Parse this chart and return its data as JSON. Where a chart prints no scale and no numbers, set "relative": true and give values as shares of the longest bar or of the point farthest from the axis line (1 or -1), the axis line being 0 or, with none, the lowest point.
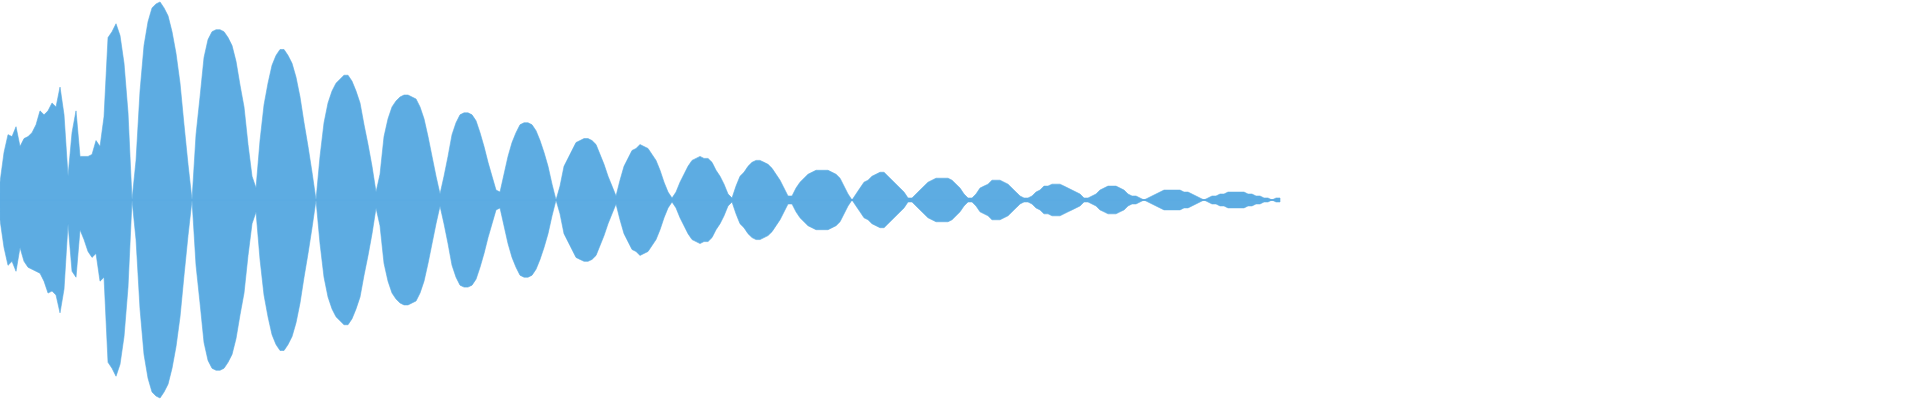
{
  "chart_data": {
    "type": "area",
    "relative": true,
    "categories": [
      null,
      null,
      null,
      null,
      null,
      null,
      null,
      null,
      null,
      null,
      null,
      null,
      null,
      null,
      null,
      null,
      null,
      null,
      null,
      null,
      null,
      null,
      null,
      null,
      null,
      null,
      null,
      null,
      null,
      null,
      null,
      null,
      null,
      null,
      null,
      null,
      null,
      null,
      null,
      null,
      null,
      null,
      null,
      null,
      null,
      null,
      null,
      null,
      null,
      null,
      null,
      null,
      null,
      null,
      null,
      null,
      null,
      null,
      null,
      null,
      null,
      null,
      null,
      null,
      null,
      null,
      null,
      null,
      null,
      null,
      null,
      null,
      null,
      null,
      null,
      null,
      null,
      null,
      null,
      null,
      null,
      null,
      null,
      null,
      null,
      null,
      null,
      null,
      null,
      null,
      null,
      null,
      null,
      null,
      null,
      null,
      null,
      null,
      null,
      null,
      null,
      null,
      null,
      null,
      null,
      null,
      null,
      null,
      null,
      null,
      null,
      null,
      null,
      null,
      null,
      null,
      null,
      null,
      null,
      null,
      null,
      null,
      null,
      null,
      null,
      null,
      null,
      null,
      null,
      null,
      null,
      null,
      null,
      null,
      null,
      null,
      null,
      null,
      null,
      null,
      null,
      null,
      null,
      null,
      null,
      null,
      null,
      null,
      null,
      null,
      null,
      null,
      null,
      null,
      null,
      null,
      null,
      null,
      null,
      null,
      null,
      null,
      null,
      null,
      null,
      null,
      null,
      null,
      null,
      null,
      null,
      null,
      null,
      null,
      null,
      null,
      null,
      null,
      null,
      null,
      null,
      null,
      null,
      null,
      null,
      null,
      null,
      null,
      null,
      null,
      null,
      null,
      null,
      null,
      null,
      null,
      null,
      null,
      null,
      null,
      null,
      null,
      null,
      null,
      null,
      null,
      null,
      null,
      null,
      null,
      null,
      null,
      null,
      null,
      null,
      null,
      null,
      null,
      null,
      null,
      null,
      null,
      null,
      null,
      null,
      null,
      null,
      null,
      null,
      null,
      null,
      null,
      null,
      null,
      null,
      null,
      null,
      null,
      null,
      null,
      null,
      null,
      null,
      null,
      null,
      null,
      null,
      null,
      null,
      null,
      null,
      null,
      null,
      null,
      null,
      null,
      null,
      null,
      null,
      null,
      null,
      null,
      null,
      null,
      null,
      null,
      null,
      null,
      null,
      null,
      null,
      null,
      null,
      null,
      null,
      null,
      null,
      null,
      null,
      null,
      null,
      null,
      null,
      null,
      null,
      null,
      null,
      null,
      null,
      null,
      null,
      null,
      null,
      null,
      null,
      null,
      null,
      null,
      null,
      null,
      null,
      null,
      null,
      null,
      null,
      null,
      null,
      null,
      null,
      null,
      null,
      null,
      null,
      null,
      null,
      null,
      null,
      null,
      null,
      null,
      null
    ],
    "ref_lines": [
      {
        "axis": "y",
        "value": 0,
        "color": "#5dace2"
      }
    ],
    "series": [
      {
        "color": "#5dace2",
        "values": [
          0.09,
          0.24,
          0.33,
          0.32,
          0.37,
          0.27,
          0.31,
          0.32,
          0.34,
          0.38,
          0.45,
          0.43,
          0.45,
          0.49,
          0.47,
          0.57,
          0.43,
          0.12,
          0.34,
          0.45,
          0.22,
          0.22,
          0.22,
          0.23,
          0.3,
          0.27,
          0.42,
          0.82,
          0.85,
          0.89,
          0.83,
          0.69,
          0.44,
          0,
          0.2,
          0.55,
          0.78,
          0.9,
          0.97,
          0.99,
          1.0,
          0.97,
          0.93,
          0.85,
          0.74,
          0.59,
          0.38,
          0.18,
          0,
          0.33,
          0.52,
          0.72,
          0.81,
          0.85,
          0.86,
          0.86,
          0.85,
          0.82,
          0.78,
          0.7,
          0.58,
          0.47,
          0.28,
          0.12,
          0.06,
          0.3,
          0.48,
          0.59,
          0.68,
          0.73,
          0.76,
          0.76,
          0.73,
          0.69,
          0.62,
          0.52,
          0.39,
          0.27,
          0.14,
          0,
          0.22,
          0.39,
          0.49,
          0.55,
          0.59,
          0.61,
          0.63,
          0.63,
          0.6,
          0.55,
          0.49,
          0.38,
          0.28,
          0.17,
          0.04,
          0.13,
          0.32,
          0.41,
          0.47,
          0.5,
          0.52,
          0.53,
          0.53,
          0.52,
          0.51,
          0.47,
          0.41,
          0.32,
          0.22,
          0.12,
          0.03,
          0.12,
          0.22,
          0.33,
          0.39,
          0.43,
          0.44,
          0.44,
          0.43,
          0.4,
          0.34,
          0.27,
          0.19,
          0.12,
          0.05,
          0.04,
          0.13,
          0.22,
          0.29,
          0.34,
          0.38,
          0.39,
          0.39,
          0.38,
          0.35,
          0.3,
          0.24,
          0.17,
          0.08,
          0,
          0.07,
          0.17,
          0.21,
          0.25,
          0.29,
          0.3,
          0.31,
          0.31,
          0.3,
          0.28,
          0.23,
          0.18,
          0.12,
          0.07,
          0.02,
          0.1,
          0.17,
          0.21,
          0.25,
          0.26,
          0.28,
          0.27,
          0.26,
          0.23,
          0.2,
          0.15,
          0.09,
          0.04,
          0.01,
          0.04,
          0.09,
          0.13,
          0.17,
          0.2,
          0.21,
          0.22,
          0.21,
          0.21,
          0.19,
          0.15,
          0.12,
          0.08,
          0.03,
          0.01,
          0.07,
          0.12,
          0.14,
          0.17,
          0.19,
          0.2,
          0.2,
          0.19,
          0.18,
          0.16,
          0.13,
          0.1,
          0.06,
          0.02,
          0.02,
          0.06,
          0.09,
          0.11,
          0.13,
          0.14,
          0.15,
          0.15,
          0.15,
          0.15,
          0.14,
          0.13,
          0.11,
          0.07,
          0.03,
          0,
          0.03,
          0.06,
          0.09,
          0.1,
          0.12,
          0.13,
          0.14,
          0.14,
          0.12,
          0.1,
          0.08,
          0.06,
          0.04,
          0.01,
          0.01,
          0.03,
          0.05,
          0.07,
          0.09,
          0.1,
          0.11,
          0.11,
          0.11,
          0.11,
          0.1,
          0.08,
          0.06,
          0.03,
          0.01,
          0.01,
          0.03,
          0.06,
          0.07,
          0.08,
          0.1,
          0.1,
          0.1,
          0.09,
          0.08,
          0.06,
          0.04,
          0.02,
          0.01,
          0.01,
          0.02,
          0.04,
          0.05,
          0.07,
          0.07,
          0.08,
          0.08,
          0.08,
          0.07,
          0.06,
          0.05,
          0.04,
          0.03,
          0.01,
          0.01,
          0.02,
          0.03,
          0.05,
          0.06,
          0.07,
          0.07,
          0.07,
          0.06,
          0.05,
          0.03,
          0.02,
          0.02,
          0.01,
          0,
          0.01,
          0.02,
          0.03,
          0.04,
          0.05,
          0.05,
          0.05,
          0.05,
          0.05,
          0.04,
          0.04,
          0.03,
          0.02,
          0.01,
          0,
          0.01,
          0.02,
          0.02,
          0.03,
          0.03,
          0.04,
          0.04,
          0.04,
          0.04,
          0.04,
          0.03,
          0.03,
          0.02,
          0.02,
          0.01,
          0.01,
          0,
          0.01,
          0.01
        ]
      },
      {
        "color": "#5dace2",
        "values": [
          -0.1,
          -0.24,
          -0.33,
          -0.31,
          -0.36,
          -0.24,
          -0.31,
          -0.34,
          -0.35,
          -0.36,
          -0.37,
          -0.41,
          -0.47,
          -0.46,
          -0.48,
          -0.57,
          -0.45,
          -0.12,
          -0.36,
          -0.39,
          -0.15,
          -0.2,
          -0.26,
          -0.29,
          -0.27,
          -0.41,
          -0.39,
          -0.82,
          -0.85,
          -0.89,
          -0.83,
          -0.69,
          -0.44,
          0,
          -0.2,
          -0.55,
          -0.78,
          -0.9,
          -0.97,
          -0.99,
          -1.0,
          -0.97,
          -0.93,
          -0.85,
          -0.74,
          -0.59,
          -0.38,
          -0.18,
          0,
          -0.33,
          -0.52,
          -0.72,
          -0.81,
          -0.85,
          -0.86,
          -0.86,
          -0.85,
          -0.82,
          -0.78,
          -0.7,
          -0.58,
          -0.47,
          -0.28,
          -0.12,
          -0.06,
          -0.3,
          -0.48,
          -0.59,
          -0.68,
          -0.73,
          -0.76,
          -0.76,
          -0.73,
          -0.69,
          -0.62,
          -0.52,
          -0.39,
          -0.27,
          -0.14,
          0,
          -0.22,
          -0.39,
          -0.49,
          -0.55,
          -0.59,
          -0.61,
          -0.63,
          -0.63,
          -0.6,
          -0.55,
          -0.49,
          -0.38,
          -0.28,
          -0.17,
          -0.04,
          -0.13,
          -0.32,
          -0.41,
          -0.47,
          -0.5,
          -0.52,
          -0.53,
          -0.53,
          -0.52,
          -0.51,
          -0.47,
          -0.41,
          -0.32,
          -0.22,
          -0.12,
          -0.03,
          -0.12,
          -0.22,
          -0.33,
          -0.39,
          -0.43,
          -0.44,
          -0.44,
          -0.43,
          -0.4,
          -0.34,
          -0.27,
          -0.19,
          -0.12,
          -0.05,
          -0.04,
          -0.13,
          -0.22,
          -0.29,
          -0.34,
          -0.38,
          -0.39,
          -0.39,
          -0.38,
          -0.35,
          -0.3,
          -0.24,
          -0.17,
          -0.08,
          0,
          -0.07,
          -0.17,
          -0.21,
          -0.25,
          -0.29,
          -0.3,
          -0.31,
          -0.31,
          -0.3,
          -0.28,
          -0.23,
          -0.18,
          -0.12,
          -0.07,
          -0.02,
          -0.1,
          -0.17,
          -0.21,
          -0.25,
          -0.26,
          -0.28,
          -0.27,
          -0.26,
          -0.23,
          -0.2,
          -0.15,
          -0.09,
          -0.04,
          -0.01,
          -0.04,
          -0.09,
          -0.13,
          -0.17,
          -0.2,
          -0.21,
          -0.22,
          -0.21,
          -0.21,
          -0.19,
          -0.15,
          -0.12,
          -0.08,
          -0.03,
          -0.01,
          -0.07,
          -0.12,
          -0.14,
          -0.17,
          -0.19,
          -0.2,
          -0.2,
          -0.19,
          -0.18,
          -0.16,
          -0.13,
          -0.1,
          -0.06,
          -0.02,
          -0.02,
          -0.06,
          -0.09,
          -0.11,
          -0.13,
          -0.14,
          -0.15,
          -0.15,
          -0.15,
          -0.15,
          -0.14,
          -0.13,
          -0.11,
          -0.07,
          -0.03,
          0,
          -0.03,
          -0.06,
          -0.09,
          -0.1,
          -0.12,
          -0.13,
          -0.14,
          -0.14,
          -0.12,
          -0.1,
          -0.08,
          -0.06,
          -0.04,
          -0.01,
          -0.01,
          -0.03,
          -0.05,
          -0.07,
          -0.09,
          -0.1,
          -0.11,
          -0.11,
          -0.11,
          -0.11,
          -0.1,
          -0.08,
          -0.06,
          -0.03,
          -0.01,
          -0.01,
          -0.03,
          -0.06,
          -0.07,
          -0.08,
          -0.1,
          -0.1,
          -0.1,
          -0.09,
          -0.08,
          -0.06,
          -0.04,
          -0.02,
          -0.01,
          -0.01,
          -0.02,
          -0.04,
          -0.05,
          -0.07,
          -0.07,
          -0.08,
          -0.08,
          -0.08,
          -0.07,
          -0.06,
          -0.05,
          -0.04,
          -0.03,
          -0.01,
          -0.01,
          -0.02,
          -0.03,
          -0.05,
          -0.06,
          -0.07,
          -0.07,
          -0.07,
          -0.06,
          -0.05,
          -0.03,
          -0.02,
          -0.02,
          -0.01,
          0,
          -0.01,
          -0.02,
          -0.03,
          -0.04,
          -0.05,
          -0.05,
          -0.05,
          -0.05,
          -0.05,
          -0.04,
          -0.04,
          -0.03,
          -0.02,
          -0.01,
          0,
          -0.01,
          -0.02,
          -0.02,
          -0.03,
          -0.03,
          -0.04,
          -0.04,
          -0.04,
          -0.04,
          -0.04,
          -0.03,
          -0.03,
          -0.02,
          -0.02,
          -0.01,
          -0.01,
          0,
          -0.01,
          -0.01
        ]
      }
    ]
  }
}
